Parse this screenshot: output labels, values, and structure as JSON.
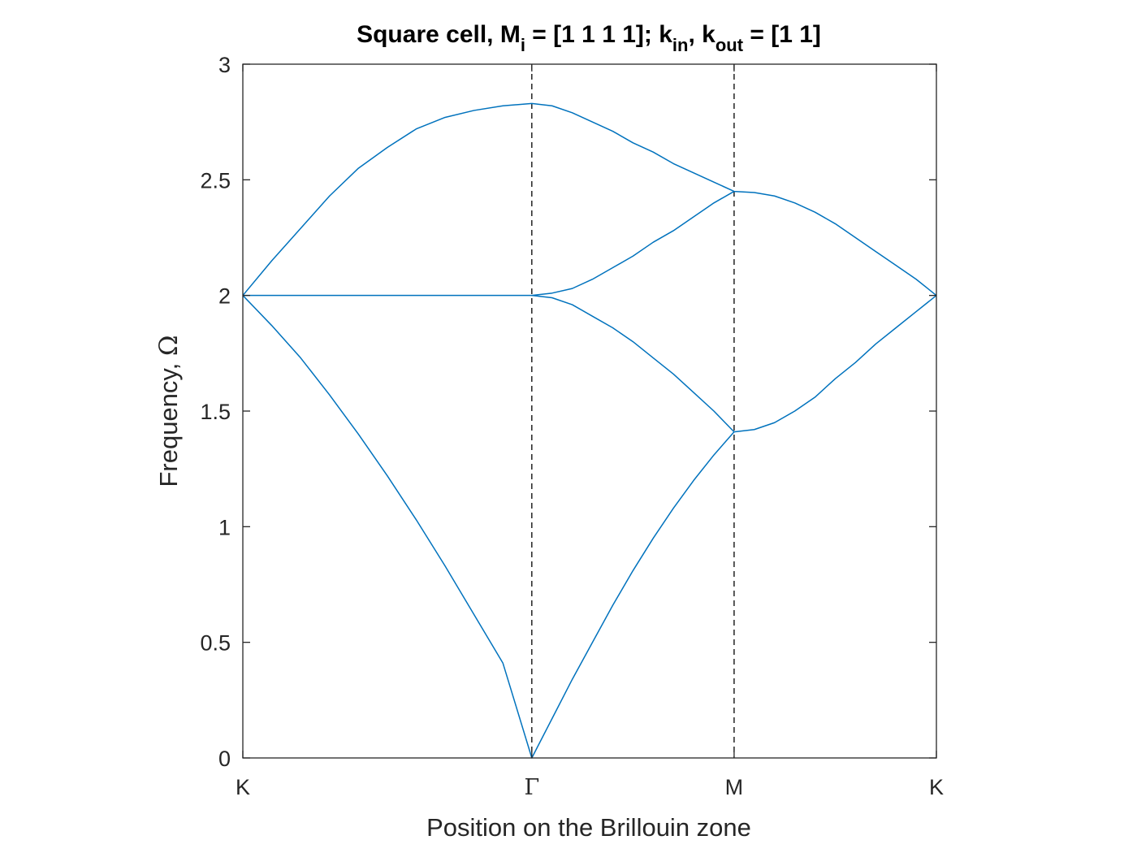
{
  "chart_data": {
    "type": "line",
    "title": {
      "p1": "Square cell, M",
      "sub1": "i",
      "p2": " = [1 1 1 1]; k",
      "sub2": "in",
      "p3": ", k",
      "sub3": "out",
      "p4": " = [1 1]"
    },
    "xlabel": "Position on the Brillouin zone",
    "ylabel": {
      "text": "Frequency, ",
      "symbol": "Ω"
    },
    "ylim": [
      0,
      3
    ],
    "xlim": [
      0,
      3
    ],
    "yticks": [
      {
        "value": 0,
        "label": "0"
      },
      {
        "value": 0.5,
        "label": "0.5"
      },
      {
        "value": 1,
        "label": "1"
      },
      {
        "value": 1.5,
        "label": "1.5"
      },
      {
        "value": 2,
        "label": "2"
      },
      {
        "value": 2.5,
        "label": "2.5"
      },
      {
        "value": 3,
        "label": "3"
      }
    ],
    "xticks": [
      {
        "value": 0,
        "label": "K"
      },
      {
        "value": 1.25,
        "label": "Γ"
      },
      {
        "value": 2.125,
        "label": "M"
      },
      {
        "value": 3,
        "label": "K"
      }
    ],
    "segment_bounds": [
      0,
      1.25,
      2.125,
      3
    ],
    "vlines": [
      1.25,
      2.125
    ],
    "grid": false,
    "line_color": "#0072BD",
    "vline_color": "#000000",
    "series": [
      {
        "x": [
          0,
          0.125,
          0.25,
          0.375,
          0.5,
          0.625,
          0.75,
          0.875,
          1,
          1.125,
          1.25,
          1.3375,
          1.425,
          1.5125,
          1.6,
          1.6875,
          1.775,
          1.8625,
          1.95,
          2.0375,
          2.125,
          2.2125,
          2.3,
          2.3875,
          2.475,
          2.5625,
          2.65,
          2.7375,
          2.825,
          2.9125,
          3
        ],
        "y": [
          2,
          2.15,
          2.29,
          2.43,
          2.55,
          2.64,
          2.72,
          2.77,
          2.8,
          2.82,
          2.83,
          2.82,
          2.79,
          2.75,
          2.71,
          2.66,
          2.62,
          2.57,
          2.53,
          2.49,
          2.45,
          2.445,
          2.43,
          2.4,
          2.36,
          2.31,
          2.25,
          2.19,
          2.13,
          2.07,
          2
        ]
      },
      {
        "x": [
          0,
          0.125,
          0.25,
          0.375,
          0.5,
          0.625,
          0.75,
          0.875,
          1,
          1.125,
          1.25,
          1.3375,
          1.425,
          1.5125,
          1.6,
          1.6875,
          1.775,
          1.8625,
          1.95,
          2.0375,
          2.125
        ],
        "y": [
          2,
          2,
          2,
          2,
          2,
          2,
          2,
          2,
          2,
          2,
          2,
          2.01,
          2.03,
          2.07,
          2.12,
          2.17,
          2.23,
          2.28,
          2.34,
          2.4,
          2.45
        ]
      },
      {
        "x": [
          1.25,
          1.3375,
          1.425,
          1.5125,
          1.6,
          1.6875,
          1.775,
          1.8625,
          1.95,
          2.0375,
          2.125,
          2.2125,
          2.3,
          2.3875,
          2.475,
          2.5625,
          2.65,
          2.7375,
          2.825,
          2.9125,
          3
        ],
        "y": [
          2,
          1.99,
          1.96,
          1.91,
          1.86,
          1.8,
          1.73,
          1.66,
          1.58,
          1.5,
          1.41,
          1.42,
          1.45,
          1.5,
          1.56,
          1.64,
          1.71,
          1.79,
          1.86,
          1.93,
          2
        ]
      },
      {
        "x": [
          0,
          0.125,
          0.25,
          0.375,
          0.5,
          0.625,
          0.75,
          0.875,
          1,
          1.125,
          1.25,
          1.3375,
          1.425,
          1.5125,
          1.6,
          1.6875,
          1.775,
          1.8625,
          1.95,
          2.0375,
          2.125
        ],
        "y": [
          2,
          1.87,
          1.73,
          1.57,
          1.4,
          1.22,
          1.03,
          0.83,
          0.62,
          0.41,
          0,
          0.17,
          0.34,
          0.5,
          0.66,
          0.81,
          0.95,
          1.08,
          1.2,
          1.31,
          1.41
        ]
      }
    ]
  }
}
